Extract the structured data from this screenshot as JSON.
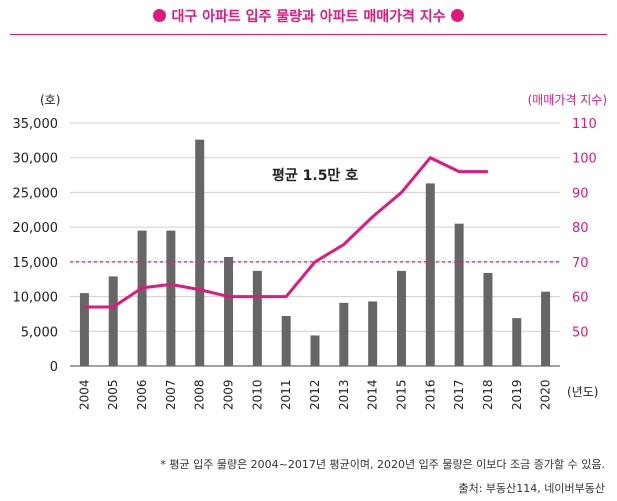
{
  "title": "대구 아파트 입주 물량과 아파트 매매가격 지수",
  "colors": {
    "accent": "#e2187f",
    "bar": "#666666",
    "grid": "#cfcfcf",
    "text": "#222222"
  },
  "chart_data": {
    "type": "bar",
    "categories": [
      "2004",
      "2005",
      "2006",
      "2007",
      "2008",
      "2009",
      "2010",
      "2011",
      "2012",
      "2013",
      "2014",
      "2015",
      "2016",
      "2017",
      "2018",
      "2019",
      "2020"
    ],
    "series": [
      {
        "values": [
          10500,
          12900,
          19500,
          19500,
          32600,
          15700,
          13700,
          7200,
          4400,
          9100,
          9300,
          13700,
          26300,
          20500,
          13400,
          6900,
          10700
        ]
      }
    ],
    "line_series": {
      "axis": "right",
      "x": [
        "2004",
        "2005",
        "2006",
        "2007",
        "2008",
        "2009",
        "2010",
        "2011",
        "2012",
        "2013",
        "2014",
        "2015",
        "2016",
        "2017",
        "2018"
      ],
      "values": [
        57,
        57,
        62.5,
        63.5,
        62,
        60,
        60,
        60,
        70,
        75,
        83,
        90,
        100,
        96,
        96
      ]
    },
    "reference_line": {
      "value": 15000,
      "axis": "left",
      "label": "평균 1.5만 호"
    },
    "left_axis": {
      "label": "(호)",
      "ylim": [
        0,
        35000
      ],
      "ticks": [
        "0",
        "5,000",
        "10,000",
        "15,000",
        "20,000",
        "25,000",
        "30,000",
        "35,000"
      ]
    },
    "right_axis": {
      "label": "(매매가격 지수)",
      "ylim": [
        40,
        110
      ],
      "ticks": [
        "50",
        "60",
        "70",
        "80",
        "90",
        "100",
        "110"
      ]
    },
    "xlabel": "(년도)",
    "grid": true
  },
  "note": "* 평균 입주 물량은 2004~2017년 평균이며, 2020년 입주 물량은 이보다 조금 증가할 수 있음.",
  "source": "출처: 부동산114, 네이버부동산"
}
